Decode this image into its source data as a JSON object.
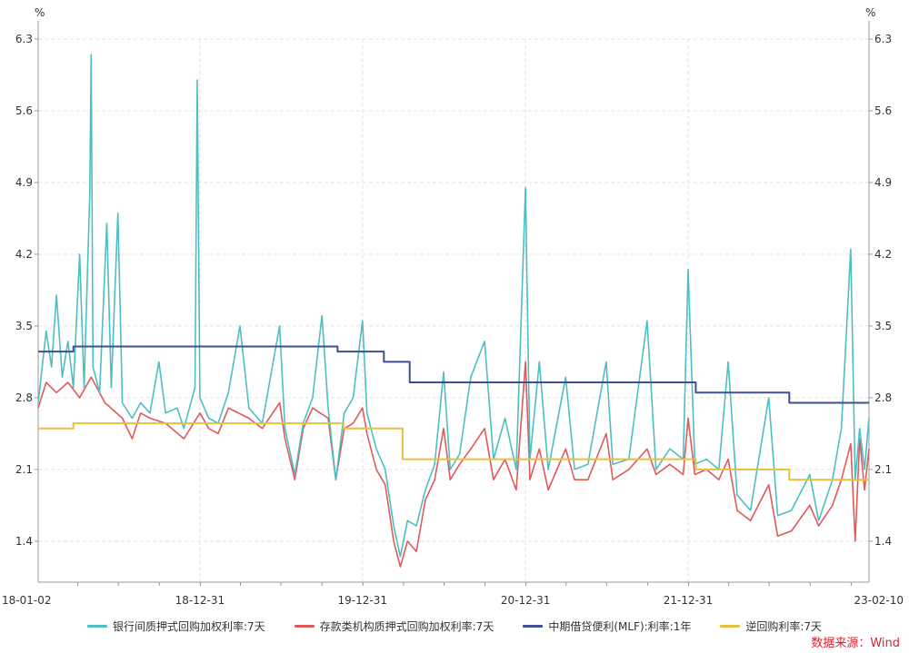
{
  "chart_data": {
    "type": "line",
    "y_unit_left": "%",
    "y_unit_right": "%",
    "ylim": [
      1.0,
      6.3
    ],
    "y_ticks": [
      "6.3",
      "5.6",
      "4.9",
      "4.2",
      "3.5",
      "2.8",
      "2.1",
      "1.4"
    ],
    "y_tick_values": [
      6.3,
      5.6,
      4.9,
      4.2,
      3.5,
      2.8,
      2.1,
      1.4
    ],
    "x_ticks": [
      "18-01-02",
      "18-12-31",
      "19-12-31",
      "20-12-31",
      "21-12-31",
      "23-02-10"
    ],
    "x_tick_dates": [
      "2018-01-02",
      "2018-12-31",
      "2019-12-31",
      "2020-12-31",
      "2021-12-31",
      "2023-02-10"
    ],
    "xlim": [
      "2018-01-02",
      "2023-02-10"
    ],
    "grid": true,
    "legend_position": "bottom",
    "source": "数据来源：Wind",
    "series": [
      {
        "name": "银行间质押式回购加权利率:7天",
        "color": "#4dbfc4",
        "points": [
          [
            "2018-01-02",
            2.75
          ],
          [
            "2018-01-20",
            3.45
          ],
          [
            "2018-02-01",
            3.1
          ],
          [
            "2018-02-12",
            3.8
          ],
          [
            "2018-02-25",
            3.0
          ],
          [
            "2018-03-10",
            3.35
          ],
          [
            "2018-03-22",
            2.9
          ],
          [
            "2018-04-05",
            4.2
          ],
          [
            "2018-04-15",
            2.9
          ],
          [
            "2018-04-28",
            4.8
          ],
          [
            "2018-05-01",
            6.15
          ],
          [
            "2018-05-05",
            3.1
          ],
          [
            "2018-05-20",
            2.85
          ],
          [
            "2018-06-05",
            4.5
          ],
          [
            "2018-06-15",
            2.9
          ],
          [
            "2018-06-30",
            4.6
          ],
          [
            "2018-07-10",
            2.75
          ],
          [
            "2018-08-01",
            2.6
          ],
          [
            "2018-08-20",
            2.75
          ],
          [
            "2018-09-10",
            2.65
          ],
          [
            "2018-09-30",
            3.15
          ],
          [
            "2018-10-15",
            2.65
          ],
          [
            "2018-11-10",
            2.7
          ],
          [
            "2018-11-25",
            2.5
          ],
          [
            "2018-12-20",
            2.9
          ],
          [
            "2018-12-25",
            5.9
          ],
          [
            "2018-12-31",
            2.8
          ],
          [
            "2019-01-20",
            2.6
          ],
          [
            "2019-02-10",
            2.55
          ],
          [
            "2019-03-05",
            2.85
          ],
          [
            "2019-03-31",
            3.5
          ],
          [
            "2019-04-20",
            2.7
          ],
          [
            "2019-05-20",
            2.55
          ],
          [
            "2019-06-28",
            3.5
          ],
          [
            "2019-07-10",
            2.5
          ],
          [
            "2019-08-01",
            2.05
          ],
          [
            "2019-08-20",
            2.55
          ],
          [
            "2019-09-10",
            2.8
          ],
          [
            "2019-10-01",
            3.6
          ],
          [
            "2019-10-15",
            2.7
          ],
          [
            "2019-11-01",
            2.0
          ],
          [
            "2019-11-20",
            2.65
          ],
          [
            "2019-12-10",
            2.8
          ],
          [
            "2019-12-31",
            3.55
          ],
          [
            "2020-01-10",
            2.65
          ],
          [
            "2020-01-31",
            2.3
          ],
          [
            "2020-02-20",
            2.1
          ],
          [
            "2020-03-10",
            1.55
          ],
          [
            "2020-03-25",
            1.25
          ],
          [
            "2020-04-10",
            1.6
          ],
          [
            "2020-04-30",
            1.55
          ],
          [
            "2020-05-20",
            1.9
          ],
          [
            "2020-06-10",
            2.15
          ],
          [
            "2020-06-30",
            3.05
          ],
          [
            "2020-07-15",
            2.1
          ],
          [
            "2020-08-05",
            2.25
          ],
          [
            "2020-08-30",
            3.0
          ],
          [
            "2020-09-30",
            3.35
          ],
          [
            "2020-10-20",
            2.2
          ],
          [
            "2020-11-15",
            2.6
          ],
          [
            "2020-12-10",
            2.1
          ],
          [
            "2020-12-31",
            4.85
          ],
          [
            "2021-01-10",
            2.2
          ],
          [
            "2021-01-31",
            3.15
          ],
          [
            "2021-02-20",
            2.1
          ],
          [
            "2021-03-31",
            3.0
          ],
          [
            "2021-04-20",
            2.1
          ],
          [
            "2021-05-20",
            2.15
          ],
          [
            "2021-06-30",
            3.15
          ],
          [
            "2021-07-15",
            2.15
          ],
          [
            "2021-08-20",
            2.2
          ],
          [
            "2021-09-30",
            3.55
          ],
          [
            "2021-10-20",
            2.1
          ],
          [
            "2021-11-20",
            2.3
          ],
          [
            "2021-12-20",
            2.2
          ],
          [
            "2021-12-31",
            4.05
          ],
          [
            "2022-01-15",
            2.15
          ],
          [
            "2022-02-10",
            2.2
          ],
          [
            "2022-03-10",
            2.1
          ],
          [
            "2022-03-31",
            3.15
          ],
          [
            "2022-04-20",
            1.85
          ],
          [
            "2022-05-20",
            1.7
          ],
          [
            "2022-06-30",
            2.8
          ],
          [
            "2022-07-20",
            1.65
          ],
          [
            "2022-08-20",
            1.7
          ],
          [
            "2022-09-30",
            2.05
          ],
          [
            "2022-10-20",
            1.6
          ],
          [
            "2022-11-20",
            2.0
          ],
          [
            "2022-12-10",
            2.5
          ],
          [
            "2022-12-31",
            4.25
          ],
          [
            "2023-01-10",
            2.0
          ],
          [
            "2023-01-20",
            2.5
          ],
          [
            "2023-01-31",
            2.1
          ],
          [
            "2023-02-10",
            2.6
          ]
        ]
      },
      {
        "name": "存款类机构质押式回购加权利率:7天",
        "color": "#e05a5a",
        "points": [
          [
            "2018-01-02",
            2.7
          ],
          [
            "2018-01-20",
            2.95
          ],
          [
            "2018-02-12",
            2.85
          ],
          [
            "2018-03-10",
            2.95
          ],
          [
            "2018-04-05",
            2.8
          ],
          [
            "2018-05-01",
            3.0
          ],
          [
            "2018-06-01",
            2.75
          ],
          [
            "2018-07-10",
            2.6
          ],
          [
            "2018-08-01",
            2.4
          ],
          [
            "2018-08-20",
            2.65
          ],
          [
            "2018-09-10",
            2.6
          ],
          [
            "2018-10-15",
            2.55
          ],
          [
            "2018-11-25",
            2.4
          ],
          [
            "2018-12-31",
            2.65
          ],
          [
            "2019-01-20",
            2.5
          ],
          [
            "2019-02-10",
            2.45
          ],
          [
            "2019-03-05",
            2.7
          ],
          [
            "2019-04-20",
            2.6
          ],
          [
            "2019-05-20",
            2.5
          ],
          [
            "2019-06-28",
            2.75
          ],
          [
            "2019-07-10",
            2.4
          ],
          [
            "2019-08-01",
            2.0
          ],
          [
            "2019-08-20",
            2.5
          ],
          [
            "2019-09-10",
            2.7
          ],
          [
            "2019-10-15",
            2.6
          ],
          [
            "2019-11-01",
            2.0
          ],
          [
            "2019-11-20",
            2.5
          ],
          [
            "2019-12-10",
            2.55
          ],
          [
            "2019-12-31",
            2.7
          ],
          [
            "2020-01-10",
            2.45
          ],
          [
            "2020-01-31",
            2.1
          ],
          [
            "2020-02-20",
            1.95
          ],
          [
            "2020-03-10",
            1.4
          ],
          [
            "2020-03-25",
            1.15
          ],
          [
            "2020-04-10",
            1.4
          ],
          [
            "2020-04-30",
            1.3
          ],
          [
            "2020-05-20",
            1.8
          ],
          [
            "2020-06-10",
            2.0
          ],
          [
            "2020-06-30",
            2.5
          ],
          [
            "2020-07-15",
            2.0
          ],
          [
            "2020-08-05",
            2.15
          ],
          [
            "2020-08-30",
            2.3
          ],
          [
            "2020-09-30",
            2.5
          ],
          [
            "2020-10-20",
            2.0
          ],
          [
            "2020-11-15",
            2.2
          ],
          [
            "2020-12-10",
            1.9
          ],
          [
            "2020-12-31",
            3.15
          ],
          [
            "2021-01-10",
            2.0
          ],
          [
            "2021-01-31",
            2.3
          ],
          [
            "2021-02-20",
            1.9
          ],
          [
            "2021-03-31",
            2.3
          ],
          [
            "2021-04-20",
            2.0
          ],
          [
            "2021-05-20",
            2.0
          ],
          [
            "2021-06-30",
            2.45
          ],
          [
            "2021-07-15",
            2.0
          ],
          [
            "2021-08-20",
            2.1
          ],
          [
            "2021-09-30",
            2.3
          ],
          [
            "2021-10-20",
            2.05
          ],
          [
            "2021-11-20",
            2.15
          ],
          [
            "2021-12-20",
            2.05
          ],
          [
            "2021-12-31",
            2.6
          ],
          [
            "2022-01-15",
            2.05
          ],
          [
            "2022-02-10",
            2.1
          ],
          [
            "2022-03-10",
            2.0
          ],
          [
            "2022-03-31",
            2.2
          ],
          [
            "2022-04-20",
            1.7
          ],
          [
            "2022-05-20",
            1.6
          ],
          [
            "2022-06-30",
            1.95
          ],
          [
            "2022-07-20",
            1.45
          ],
          [
            "2022-08-20",
            1.5
          ],
          [
            "2022-09-30",
            1.75
          ],
          [
            "2022-10-20",
            1.55
          ],
          [
            "2022-11-20",
            1.75
          ],
          [
            "2022-12-10",
            2.0
          ],
          [
            "2022-12-31",
            2.35
          ],
          [
            "2023-01-10",
            1.4
          ],
          [
            "2023-01-20",
            2.4
          ],
          [
            "2023-01-31",
            1.9
          ],
          [
            "2023-02-10",
            2.3
          ]
        ]
      },
      {
        "name": "中期借贷便利(MLF):利率:1年",
        "color": "#3f4f8f",
        "points": [
          [
            "2018-01-02",
            3.25
          ],
          [
            "2018-03-22",
            3.3
          ],
          [
            "2019-11-05",
            3.25
          ],
          [
            "2020-02-17",
            3.15
          ],
          [
            "2020-04-15",
            2.95
          ],
          [
            "2022-01-17",
            2.85
          ],
          [
            "2022-08-15",
            2.75
          ],
          [
            "2023-02-10",
            2.75
          ]
        ]
      },
      {
        "name": "逆回购利率:7天",
        "color": "#e6c040",
        "points": [
          [
            "2018-01-02",
            2.5
          ],
          [
            "2018-03-22",
            2.55
          ],
          [
            "2019-11-18",
            2.5
          ],
          [
            "2020-03-30",
            2.2
          ],
          [
            "2022-01-17",
            2.1
          ],
          [
            "2022-08-15",
            2.0
          ],
          [
            "2023-02-10",
            2.0
          ]
        ]
      }
    ]
  }
}
